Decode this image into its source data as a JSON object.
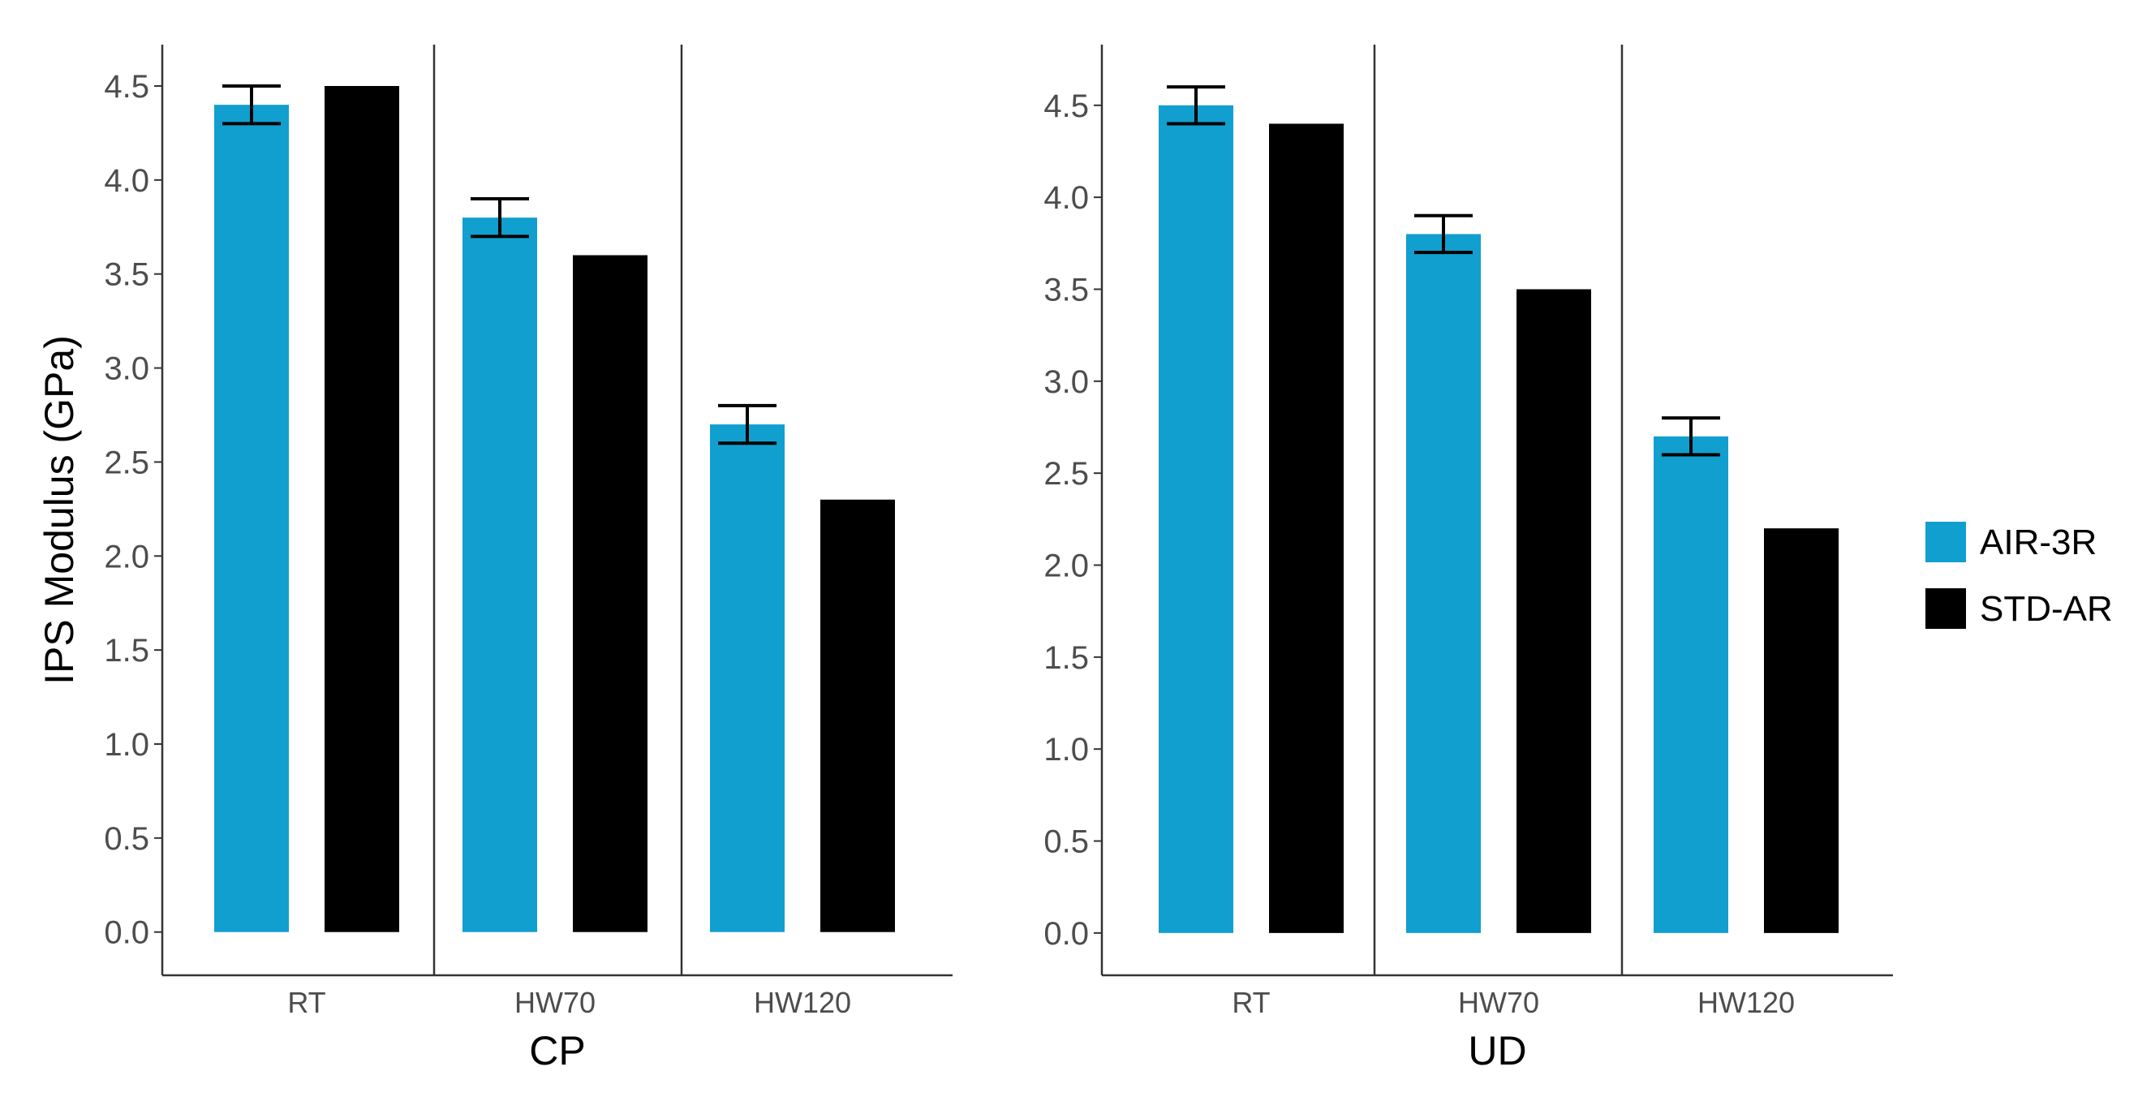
{
  "legend": {
    "entries": [
      {
        "label": "AIR-3R",
        "color": "#119fcf"
      },
      {
        "label": "STD-AR",
        "color": "#000000"
      }
    ]
  },
  "chart_data": [
    {
      "type": "bar",
      "panel": "left",
      "title": "",
      "xlabel": "CP",
      "ylabel": "IPS Modulus (GPa)",
      "categories": [
        "RT",
        "HW70",
        "HW120"
      ],
      "ylim": [
        -0.23,
        4.72
      ],
      "yticks": [
        0.0,
        0.5,
        1.0,
        1.5,
        2.0,
        2.5,
        3.0,
        3.5,
        4.0,
        4.5
      ],
      "ytick_labels": [
        "0.0",
        "0.5",
        "1.0",
        "1.5",
        "2.0",
        "2.5",
        "3.0",
        "3.5",
        "4.0",
        "4.5"
      ],
      "series": [
        {
          "name": "AIR-3R",
          "color": "#119fcf",
          "values": [
            4.4,
            3.8,
            2.7
          ],
          "error": [
            0.1,
            0.1,
            0.1
          ]
        },
        {
          "name": "STD-AR",
          "color": "#000000",
          "values": [
            4.5,
            3.6,
            2.3
          ],
          "error": null
        }
      ]
    },
    {
      "type": "bar",
      "panel": "right",
      "title": "",
      "xlabel": "UD",
      "ylabel": "",
      "categories": [
        "RT",
        "HW70",
        "HW120"
      ],
      "ylim": [
        -0.23,
        4.83
      ],
      "yticks": [
        0.0,
        0.5,
        1.0,
        1.5,
        2.0,
        2.5,
        3.0,
        3.5,
        4.0,
        4.5
      ],
      "ytick_labels": [
        "0.0",
        "0.5",
        "1.0",
        "1.5",
        "2.0",
        "2.5",
        "3.0",
        "3.5",
        "4.0",
        "4.5"
      ],
      "series": [
        {
          "name": "AIR-3R",
          "color": "#119fcf",
          "values": [
            4.5,
            3.8,
            2.7
          ],
          "error": [
            0.1,
            0.1,
            0.1
          ]
        },
        {
          "name": "STD-AR",
          "color": "#000000",
          "values": [
            4.4,
            3.5,
            2.2
          ],
          "error": null
        }
      ]
    }
  ]
}
